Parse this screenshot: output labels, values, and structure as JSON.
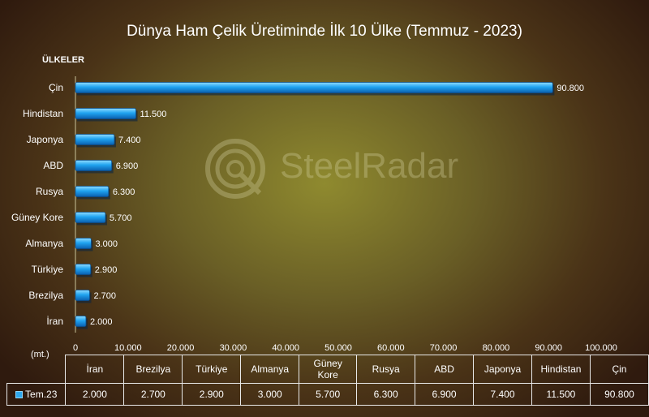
{
  "title": "Dünya Ham Çelik Üretiminde İlk 10 Ülke (Temmuz - 2023)",
  "watermark": "SteelRadar",
  "chart_data": {
    "type": "bar",
    "orientation": "horizontal",
    "title": "Dünya Ham Çelik Üretiminde İlk 10 Ülke (Temmuz - 2023)",
    "ylabel": "ÜLKELER",
    "xlabel": "(mt.)",
    "categories": [
      "İran",
      "Brezilya",
      "Türkiye",
      "Almanya",
      "Güney Kore",
      "Rusya",
      "ABD",
      "Japonya",
      "Hindistan",
      "Çin"
    ],
    "series": [
      {
        "name": "Tem.23",
        "values": [
          2000,
          2700,
          2900,
          3000,
          5700,
          6300,
          6900,
          7400,
          11500,
          90800
        ],
        "labels": [
          "2.000",
          "2.700",
          "2.900",
          "3.000",
          "5.700",
          "6.300",
          "6.900",
          "7.400",
          "11.500",
          "90.800"
        ]
      }
    ],
    "xlim": [
      0,
      100000
    ],
    "xticks": [
      0,
      10000,
      20000,
      30000,
      40000,
      50000,
      60000,
      70000,
      80000,
      90000,
      100000
    ],
    "xtick_labels": [
      "0",
      "10.000",
      "20.000",
      "30.000",
      "40.000",
      "50.000",
      "60.000",
      "70.000",
      "80.000",
      "90.000",
      "100.000"
    ],
    "grid": false,
    "data_table": true,
    "bar_color": "#1f9fee"
  }
}
